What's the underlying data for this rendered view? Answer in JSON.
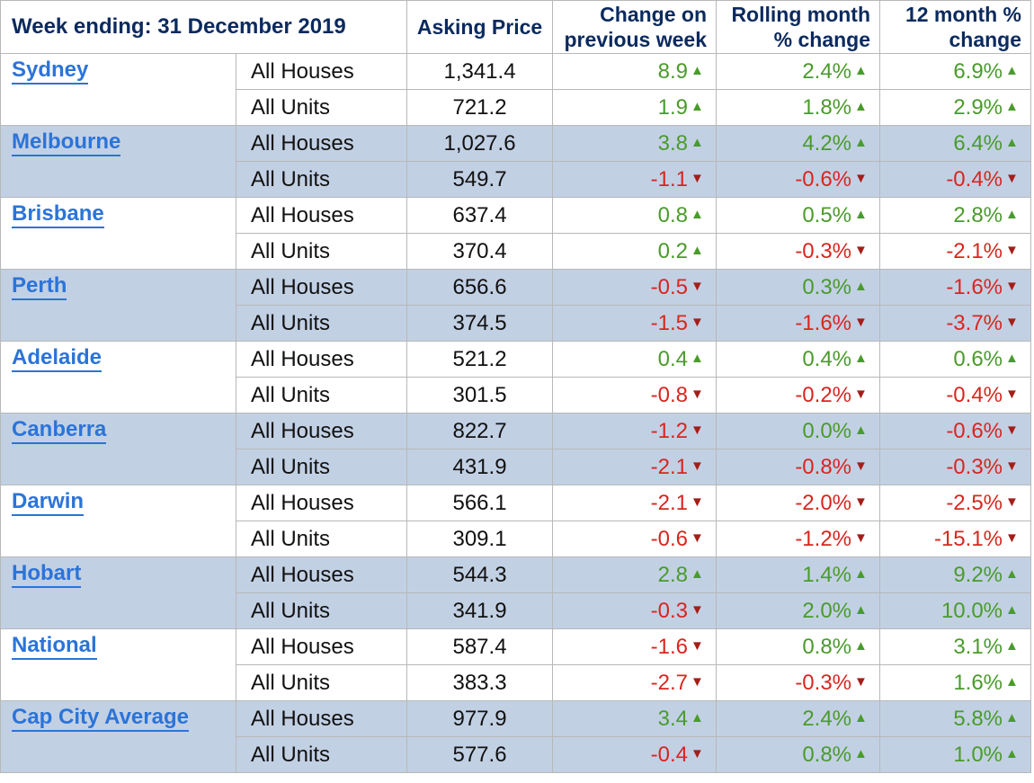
{
  "header": {
    "title": "Week ending: 31 December 2019",
    "asking_price": "Asking Price",
    "change_week": "Change on previous week",
    "rolling_month": "Rolling month % change",
    "twelve_month": "12 month % change"
  },
  "icons": {
    "up": "triangle-up-icon",
    "down": "triangle-down-icon"
  },
  "colors": {
    "up": "#4a9b2b",
    "down": "#d8261f",
    "link": "#2b74d8",
    "shade": "#c2d0e4",
    "header_text": "#0b2a5e"
  },
  "cities": [
    {
      "name": "Sydney",
      "rows": [
        {
          "type": "All Houses",
          "price": "1,341.4",
          "week": {
            "v": "8.9",
            "d": "up"
          },
          "month": {
            "v": "2.4%",
            "d": "up"
          },
          "year": {
            "v": "6.9%",
            "d": "up"
          }
        },
        {
          "type": "All Units",
          "price": "721.2",
          "week": {
            "v": "1.9",
            "d": "up"
          },
          "month": {
            "v": "1.8%",
            "d": "up"
          },
          "year": {
            "v": "2.9%",
            "d": "up"
          }
        }
      ]
    },
    {
      "name": "Melbourne",
      "rows": [
        {
          "type": "All Houses",
          "price": "1,027.6",
          "week": {
            "v": "3.8",
            "d": "up"
          },
          "month": {
            "v": "4.2%",
            "d": "up"
          },
          "year": {
            "v": "6.4%",
            "d": "up"
          }
        },
        {
          "type": "All Units",
          "price": "549.7",
          "week": {
            "v": "-1.1",
            "d": "down"
          },
          "month": {
            "v": "-0.6%",
            "d": "down"
          },
          "year": {
            "v": "-0.4%",
            "d": "down"
          }
        }
      ]
    },
    {
      "name": "Brisbane",
      "rows": [
        {
          "type": "All Houses",
          "price": "637.4",
          "week": {
            "v": "0.8",
            "d": "up"
          },
          "month": {
            "v": "0.5%",
            "d": "up"
          },
          "year": {
            "v": "2.8%",
            "d": "up"
          }
        },
        {
          "type": "All Units",
          "price": "370.4",
          "week": {
            "v": "0.2",
            "d": "up"
          },
          "month": {
            "v": "-0.3%",
            "d": "down"
          },
          "year": {
            "v": "-2.1%",
            "d": "down"
          }
        }
      ]
    },
    {
      "name": "Perth",
      "rows": [
        {
          "type": "All Houses",
          "price": "656.6",
          "week": {
            "v": "-0.5",
            "d": "down"
          },
          "month": {
            "v": "0.3%",
            "d": "up"
          },
          "year": {
            "v": "-1.6%",
            "d": "down"
          }
        },
        {
          "type": "All Units",
          "price": "374.5",
          "week": {
            "v": "-1.5",
            "d": "down"
          },
          "month": {
            "v": "-1.6%",
            "d": "down"
          },
          "year": {
            "v": "-3.7%",
            "d": "down"
          }
        }
      ]
    },
    {
      "name": "Adelaide",
      "rows": [
        {
          "type": "All Houses",
          "price": "521.2",
          "week": {
            "v": "0.4",
            "d": "up"
          },
          "month": {
            "v": "0.4%",
            "d": "up"
          },
          "year": {
            "v": "0.6%",
            "d": "up"
          }
        },
        {
          "type": "All Units",
          "price": "301.5",
          "week": {
            "v": "-0.8",
            "d": "down"
          },
          "month": {
            "v": "-0.2%",
            "d": "down"
          },
          "year": {
            "v": "-0.4%",
            "d": "down"
          }
        }
      ]
    },
    {
      "name": "Canberra",
      "rows": [
        {
          "type": "All Houses",
          "price": "822.7",
          "week": {
            "v": "-1.2",
            "d": "down"
          },
          "month": {
            "v": "0.0%",
            "d": "up"
          },
          "year": {
            "v": "-0.6%",
            "d": "down"
          }
        },
        {
          "type": "All Units",
          "price": "431.9",
          "week": {
            "v": "-2.1",
            "d": "down"
          },
          "month": {
            "v": "-0.8%",
            "d": "down"
          },
          "year": {
            "v": "-0.3%",
            "d": "down"
          }
        }
      ]
    },
    {
      "name": "Darwin",
      "rows": [
        {
          "type": "All Houses",
          "price": "566.1",
          "week": {
            "v": "-2.1",
            "d": "down"
          },
          "month": {
            "v": "-2.0%",
            "d": "down"
          },
          "year": {
            "v": "-2.5%",
            "d": "down"
          }
        },
        {
          "type": "All Units",
          "price": "309.1",
          "week": {
            "v": "-0.6",
            "d": "down"
          },
          "month": {
            "v": "-1.2%",
            "d": "down"
          },
          "year": {
            "v": "-15.1%",
            "d": "down"
          }
        }
      ]
    },
    {
      "name": "Hobart",
      "rows": [
        {
          "type": "All Houses",
          "price": "544.3",
          "week": {
            "v": "2.8",
            "d": "up"
          },
          "month": {
            "v": "1.4%",
            "d": "up"
          },
          "year": {
            "v": "9.2%",
            "d": "up"
          }
        },
        {
          "type": "All Units",
          "price": "341.9",
          "week": {
            "v": "-0.3",
            "d": "down"
          },
          "month": {
            "v": "2.0%",
            "d": "up"
          },
          "year": {
            "v": "10.0%",
            "d": "up"
          }
        }
      ]
    },
    {
      "name": "National",
      "rows": [
        {
          "type": "All Houses",
          "price": "587.4",
          "week": {
            "v": "-1.6",
            "d": "down"
          },
          "month": {
            "v": "0.8%",
            "d": "up"
          },
          "year": {
            "v": "3.1%",
            "d": "up"
          }
        },
        {
          "type": "All Units",
          "price": "383.3",
          "week": {
            "v": "-2.7",
            "d": "down"
          },
          "month": {
            "v": "-0.3%",
            "d": "down"
          },
          "year": {
            "v": "1.6%",
            "d": "up"
          }
        }
      ]
    },
    {
      "name": "Cap City Average",
      "rows": [
        {
          "type": "All Houses",
          "price": "977.9",
          "week": {
            "v": "3.4",
            "d": "up"
          },
          "month": {
            "v": "2.4%",
            "d": "up"
          },
          "year": {
            "v": "5.8%",
            "d": "up"
          }
        },
        {
          "type": "All Units",
          "price": "577.6",
          "week": {
            "v": "-0.4",
            "d": "down"
          },
          "month": {
            "v": "0.8%",
            "d": "up"
          },
          "year": {
            "v": "1.0%",
            "d": "up"
          }
        }
      ]
    }
  ]
}
